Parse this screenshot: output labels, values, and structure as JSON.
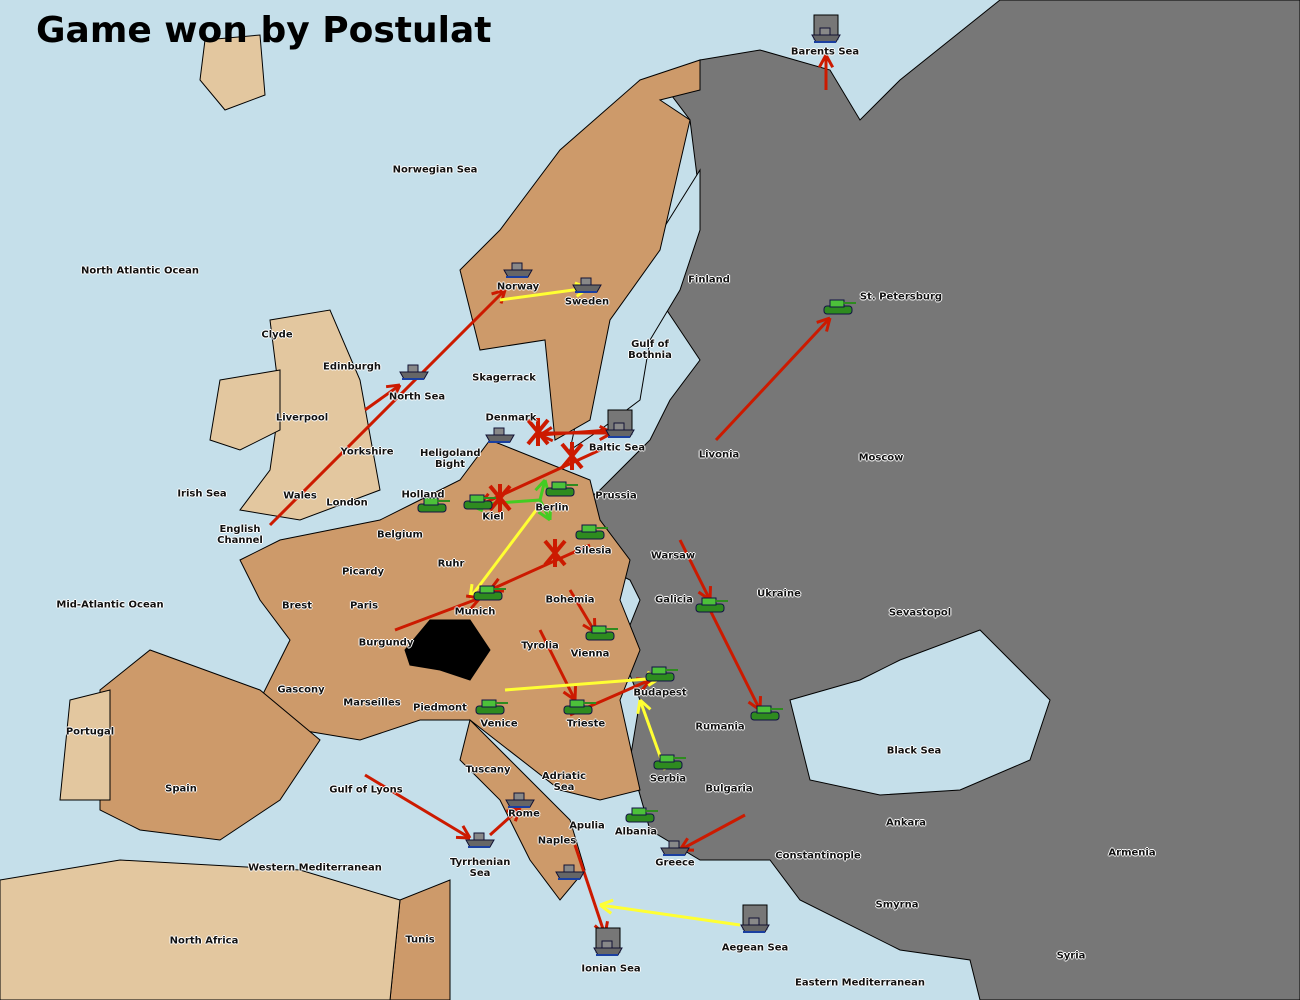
{
  "title": "Game won by Postulat",
  "colors": {
    "sea": "#c5dfea",
    "winner_land": "#cd9a6a",
    "other_land": "#777777",
    "neutral_land": "#e3c79f",
    "arrow_fail": "#cc1a00",
    "arrow_support": "#ffff33",
    "arrow_convoy": "#44cc22"
  },
  "regions": [
    "Norwegian Sea",
    "North Atlantic Ocean",
    "Barents Sea",
    "Norway",
    "Sweden",
    "Finland",
    "St. Petersburg",
    "Gulf of Bothnia",
    "Clyde",
    "Edinburgh",
    "North Sea",
    "Skagerrack",
    "Liverpool",
    "Yorkshire",
    "Denmark",
    "Baltic Sea",
    "Heligoland Bight",
    "Livonia",
    "Moscow",
    "Irish Sea",
    "Wales",
    "London",
    "Holland",
    "Kiel",
    "Berlin",
    "Prussia",
    "English Channel",
    "Belgium",
    "Silesia",
    "Warsaw",
    "Ruhr",
    "Picardy",
    "Brest",
    "Paris",
    "Mid-Atlantic Ocean",
    "Munich",
    "Bohemia",
    "Galicia",
    "Ukraine",
    "Sevastopol",
    "Burgundy",
    "Tyrolia",
    "Vienna",
    "Gascony",
    "Marseilles",
    "Piedmont",
    "Budapest",
    "Venice",
    "Trieste",
    "Rumania",
    "Portugal",
    "Spain",
    "Tuscany",
    "Adriatic Sea",
    "Serbia",
    "Bulgaria",
    "Black Sea",
    "Gulf of Lyons",
    "Rome",
    "Apulia",
    "Albania",
    "Ankara",
    "Naples",
    "Armenia",
    "Constantinople",
    "Greece",
    "Tyrrhenian Sea",
    "Western Mediterranean",
    "Smyrna",
    "North Africa",
    "Tunis",
    "Aegean Sea",
    "Ionian Sea",
    "Syria",
    "Eastern Mediterranean"
  ],
  "units": [
    {
      "type": "fleet",
      "at": "Barents Sea",
      "owner": "other"
    },
    {
      "type": "fleet",
      "at": "Norway",
      "owner": "winner"
    },
    {
      "type": "fleet",
      "at": "Sweden",
      "owner": "winner"
    },
    {
      "type": "army",
      "at": "St. Petersburg",
      "owner": "winner"
    },
    {
      "type": "fleet",
      "at": "North Sea",
      "owner": "winner"
    },
    {
      "type": "fleet",
      "at": "Denmark",
      "owner": "winner"
    },
    {
      "type": "fleet",
      "at": "Baltic Sea",
      "owner": "other"
    },
    {
      "type": "army",
      "at": "Kiel",
      "owner": "winner"
    },
    {
      "type": "army",
      "at": "Berlin",
      "owner": "winner"
    },
    {
      "type": "army",
      "at": "Holland",
      "owner": "winner"
    },
    {
      "type": "army",
      "at": "Silesia",
      "owner": "winner"
    },
    {
      "type": "army",
      "at": "Munich",
      "owner": "winner"
    },
    {
      "type": "army",
      "at": "Galicia",
      "owner": "winner"
    },
    {
      "type": "army",
      "at": "Vienna",
      "owner": "winner"
    },
    {
      "type": "army",
      "at": "Budapest",
      "owner": "winner"
    },
    {
      "type": "army",
      "at": "Venice",
      "owner": "winner"
    },
    {
      "type": "army",
      "at": "Trieste",
      "owner": "winner"
    },
    {
      "type": "army",
      "at": "Rumania",
      "owner": "winner"
    },
    {
      "type": "army",
      "at": "Serbia",
      "owner": "winner"
    },
    {
      "type": "fleet",
      "at": "Rome",
      "owner": "winner"
    },
    {
      "type": "fleet",
      "at": "Tyrrhenian Sea",
      "owner": "winner"
    },
    {
      "type": "army",
      "at": "Albania",
      "owner": "winner"
    },
    {
      "type": "fleet",
      "at": "Greece",
      "owner": "winner"
    },
    {
      "type": "fleet",
      "at": "Naples",
      "owner": "winner"
    },
    {
      "type": "fleet",
      "at": "Aegean Sea",
      "owner": "other"
    },
    {
      "type": "fleet",
      "at": "Ionian Sea",
      "owner": "other"
    }
  ]
}
